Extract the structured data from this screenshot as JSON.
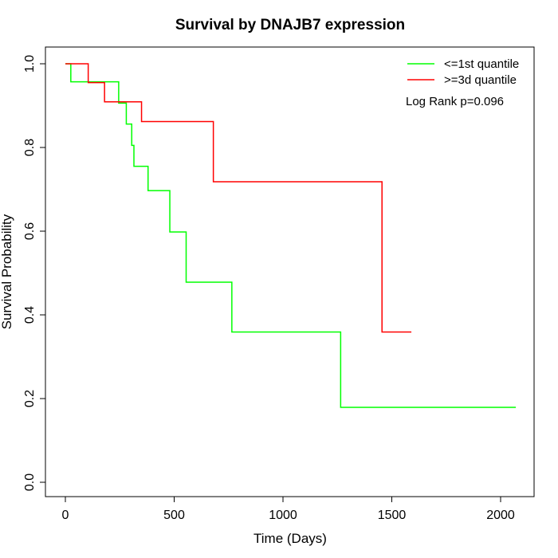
{
  "chart_data": {
    "type": "line",
    "title": "Survival by DNAJB7 expression",
    "xlabel": "Time (Days)",
    "ylabel": "Survival Probability",
    "xlim": [
      0,
      2070
    ],
    "ylim": [
      0,
      1
    ],
    "x_ticks": [
      0,
      500,
      1000,
      1500,
      2000
    ],
    "y_ticks": [
      0.0,
      0.2,
      0.4,
      0.6,
      0.8,
      1.0
    ],
    "x_tick_labels": [
      "0",
      "500",
      "1000",
      "1500",
      "2000"
    ],
    "y_tick_labels": [
      "0.0",
      "0.2",
      "0.4",
      "0.6",
      "0.8",
      "1.0"
    ],
    "legend_position": "top-right",
    "annotation": "Log Rank p=0.096",
    "series": [
      {
        "name": "<=1st quantile",
        "color": "#00ff00",
        "step_points": [
          [
            0,
            1.0
          ],
          [
            25,
            0.957
          ],
          [
            245,
            0.906
          ],
          [
            280,
            0.856
          ],
          [
            305,
            0.805
          ],
          [
            315,
            0.755
          ],
          [
            380,
            0.697
          ],
          [
            480,
            0.598
          ],
          [
            555,
            0.478
          ],
          [
            765,
            0.359
          ],
          [
            1265,
            0.179
          ],
          [
            2070,
            0.179
          ]
        ]
      },
      {
        "name": ">=3d quantile",
        "color": "#ff0000",
        "step_points": [
          [
            0,
            1.0
          ],
          [
            105,
            0.955
          ],
          [
            180,
            0.909
          ],
          [
            350,
            0.862
          ],
          [
            680,
            0.718
          ],
          [
            1455,
            0.359
          ],
          [
            1590,
            0.359
          ]
        ]
      }
    ]
  }
}
